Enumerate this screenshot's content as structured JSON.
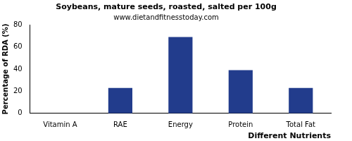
{
  "chart_data": {
    "type": "bar",
    "title": "Soybeans, mature seeds, roasted, salted per 100g",
    "subtitle": "www.dietandfitnesstoday.com",
    "x_label": "Different Nutrients",
    "y_label": "Percentage of RDA (%)",
    "categories": [
      "Vitamin A",
      "RAE",
      "Energy",
      "Protein",
      "Total Fat"
    ],
    "values": [
      0,
      23,
      69,
      39,
      23
    ],
    "color": "#223c8c",
    "ylim": [
      0,
      80
    ],
    "yticks": [
      0,
      20,
      40,
      60,
      80
    ],
    "grid": false
  }
}
